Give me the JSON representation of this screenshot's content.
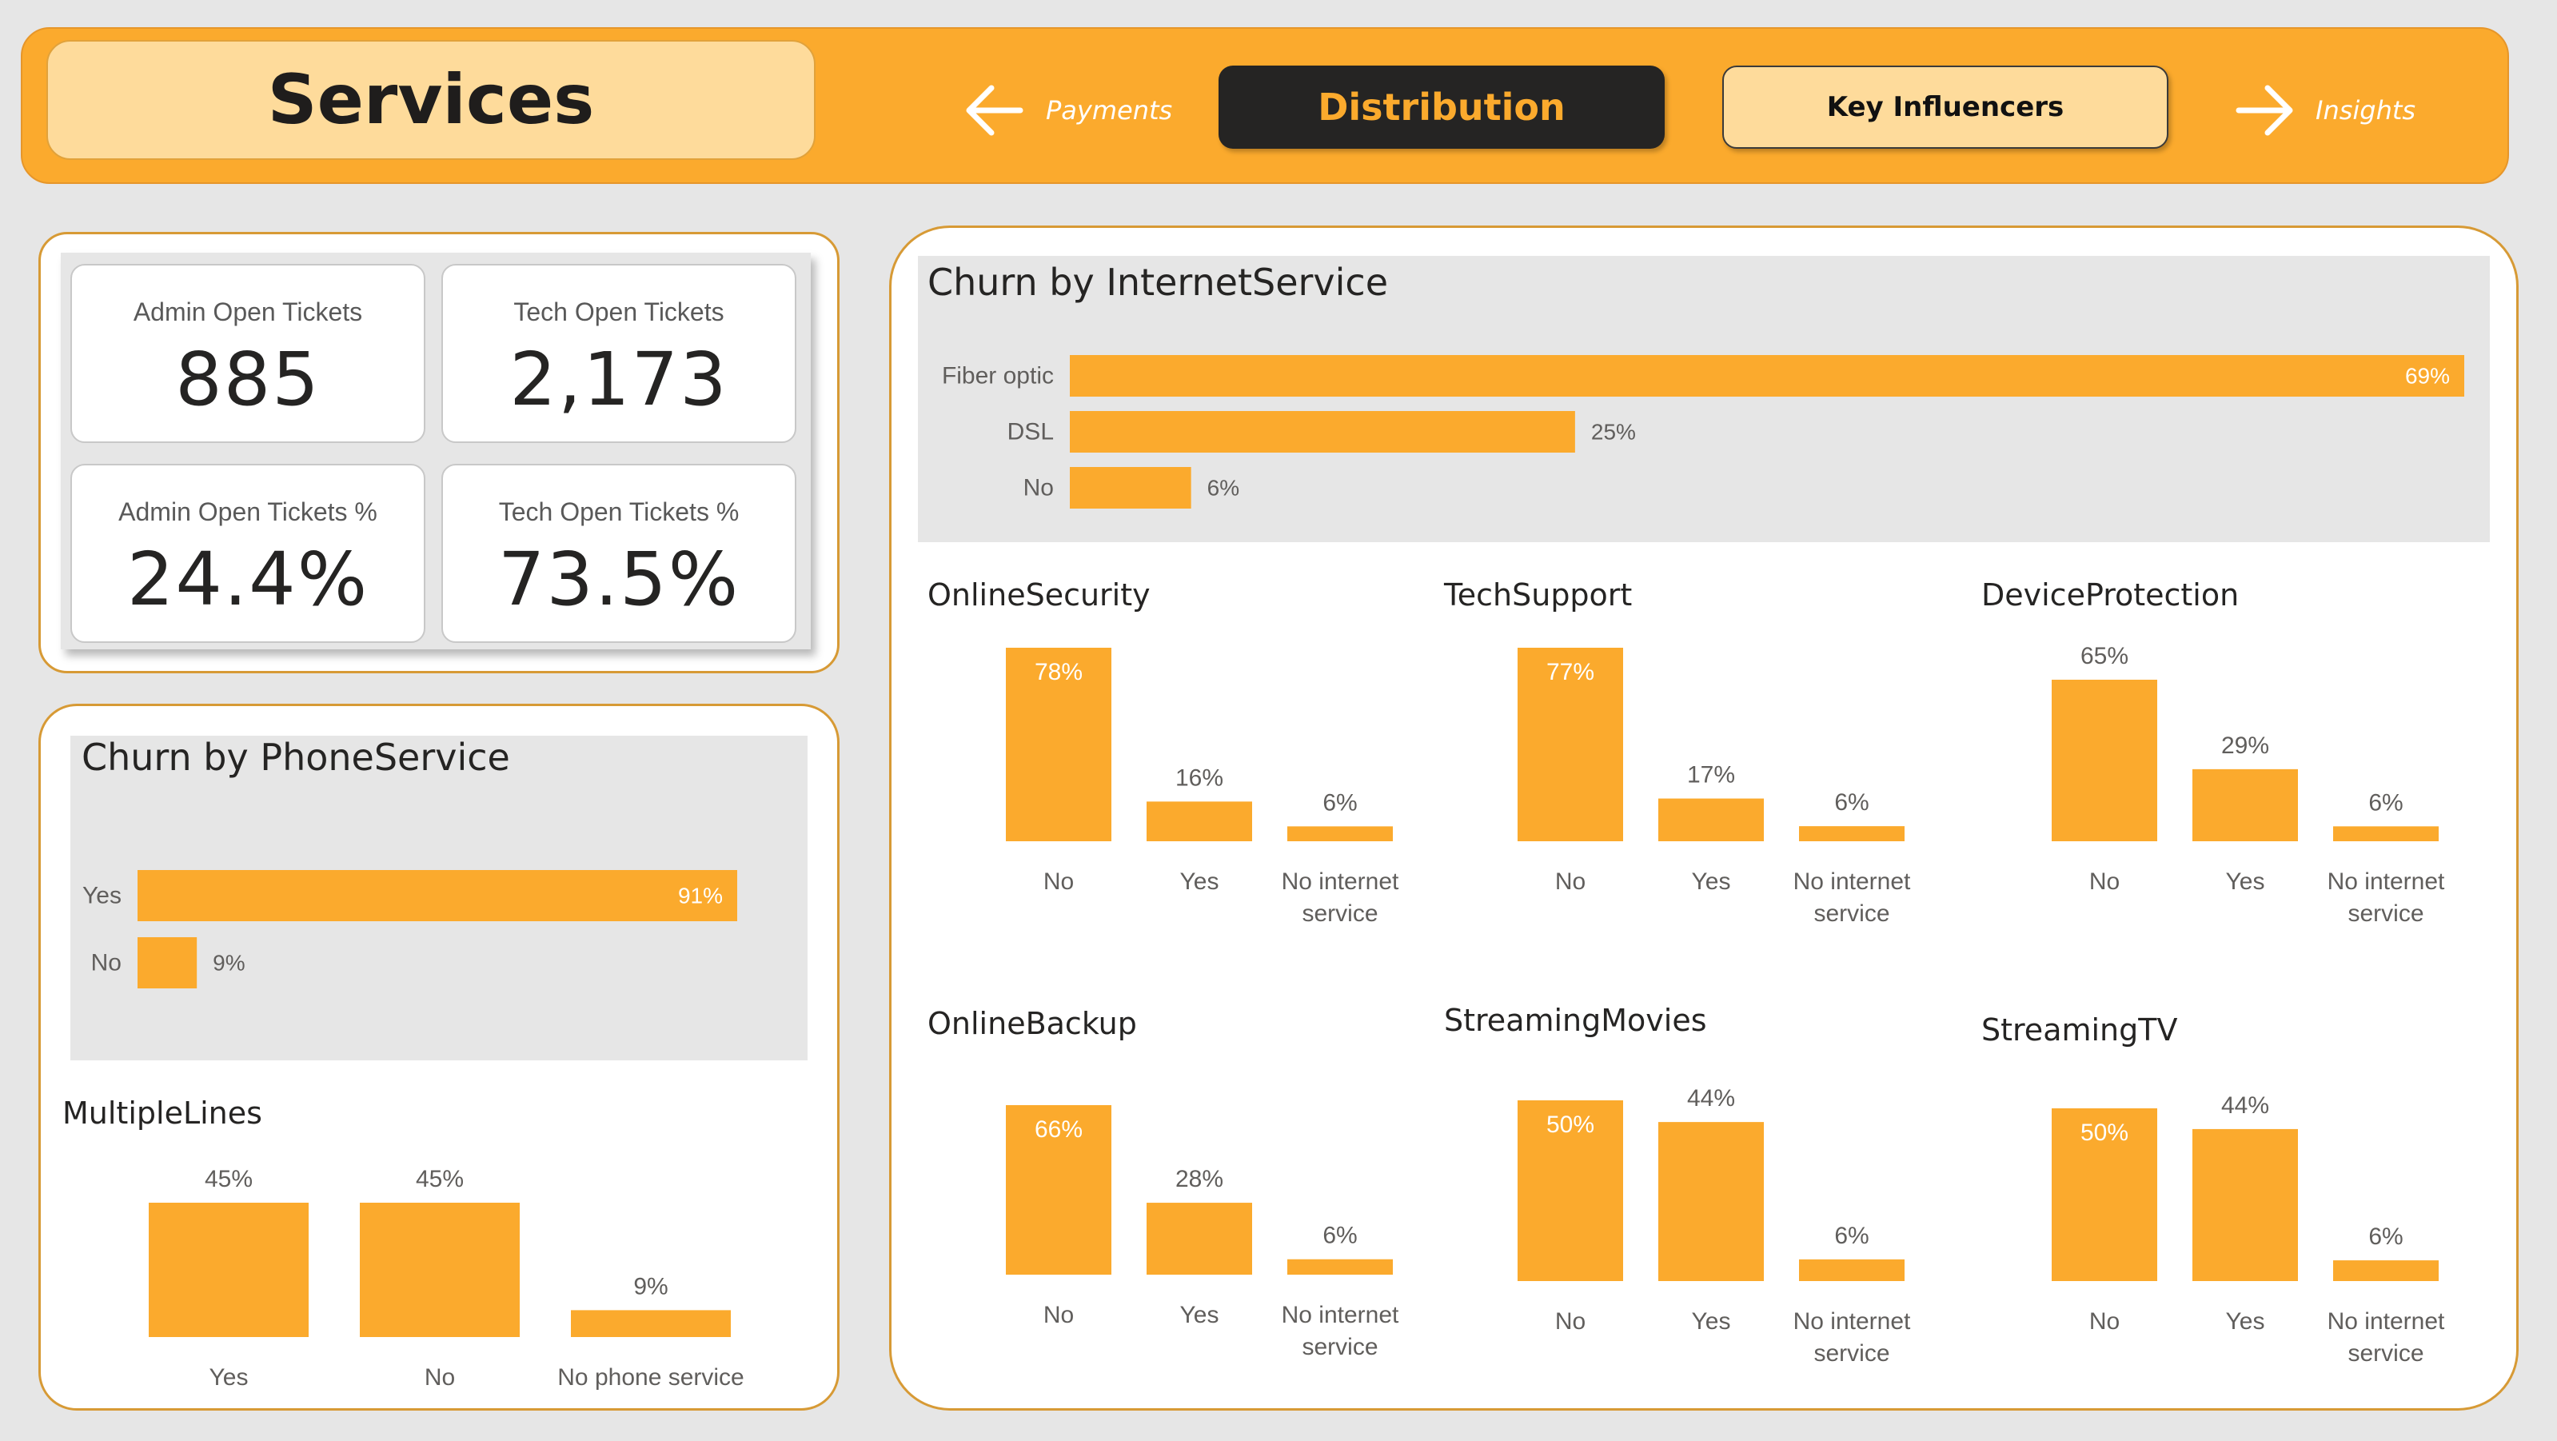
{
  "header": {
    "title": "Services",
    "nav_prev_label": "Payments",
    "tab_active_label": "Distribution",
    "tab_key_influencers_label": "Key Influencers",
    "nav_next_label": "Insights"
  },
  "kpis": [
    {
      "label": "Admin Open Tickets",
      "value": "885"
    },
    {
      "label": "Tech Open Tickets",
      "value": "2,173"
    },
    {
      "label": "Admin Open Tickets %",
      "value": "24.4%"
    },
    {
      "label": "Tech Open Tickets %",
      "value": "73.5%"
    }
  ],
  "colors": {
    "accent": "#fbaa2d",
    "accent_light": "#fedb9b",
    "dark": "#252423",
    "panel_gray": "#e6e6e6"
  },
  "chart_data": [
    {
      "id": "phone_service",
      "type": "bar",
      "orientation": "horizontal",
      "title": "Churn by PhoneService",
      "categories": [
        "Yes",
        "No"
      ],
      "values": [
        91,
        9
      ],
      "labels": [
        "91%",
        "9%"
      ],
      "xlim": [
        0,
        91
      ]
    },
    {
      "id": "multiple_lines",
      "type": "bar",
      "title": "MultipleLines",
      "categories": [
        "Yes",
        "No",
        "No phone service"
      ],
      "values": [
        45,
        45,
        9
      ],
      "labels": [
        "45%",
        "45%",
        "9%"
      ]
    },
    {
      "id": "internet_service",
      "type": "bar",
      "orientation": "horizontal",
      "title": "Churn by InternetService",
      "categories": [
        "Fiber optic",
        "DSL",
        "No"
      ],
      "values": [
        69,
        25,
        6
      ],
      "labels": [
        "69%",
        "25%",
        "6%"
      ],
      "xlim": [
        0,
        69
      ]
    },
    {
      "id": "online_security",
      "type": "bar",
      "title": "OnlineSecurity",
      "categories": [
        "No",
        "Yes",
        "No internet service"
      ],
      "values": [
        78,
        16,
        6
      ],
      "labels": [
        "78%",
        "16%",
        "6%"
      ]
    },
    {
      "id": "tech_support",
      "type": "bar",
      "title": "TechSupport",
      "categories": [
        "No",
        "Yes",
        "No internet service"
      ],
      "values": [
        77,
        17,
        6
      ],
      "labels": [
        "77%",
        "17%",
        "6%"
      ]
    },
    {
      "id": "device_protection",
      "type": "bar",
      "title": "DeviceProtection",
      "categories": [
        "No",
        "Yes",
        "No internet service"
      ],
      "values": [
        65,
        29,
        6
      ],
      "labels": [
        "65%",
        "29%",
        "6%"
      ]
    },
    {
      "id": "online_backup",
      "type": "bar",
      "title": "OnlineBackup",
      "categories": [
        "No",
        "Yes",
        "No internet service"
      ],
      "values": [
        66,
        28,
        6
      ],
      "labels": [
        "66%",
        "28%",
        "6%"
      ]
    },
    {
      "id": "streaming_movies",
      "type": "bar",
      "title": "StreamingMovies",
      "categories": [
        "No",
        "Yes",
        "No internet service"
      ],
      "values": [
        50,
        44,
        6
      ],
      "labels": [
        "50%",
        "44%",
        "6%"
      ]
    },
    {
      "id": "streaming_tv",
      "type": "bar",
      "title": "StreamingTV",
      "categories": [
        "No",
        "Yes",
        "No internet service"
      ],
      "values": [
        50,
        44,
        6
      ],
      "labels": [
        "50%",
        "44%",
        "6%"
      ]
    }
  ]
}
